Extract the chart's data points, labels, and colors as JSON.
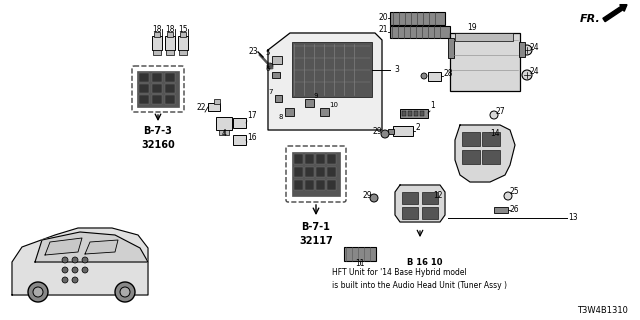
{
  "bg_color": "#ffffff",
  "diagram_code": "T3W4B1310",
  "fr_label": "FR.",
  "b73_label": "B-7-3\n32160",
  "b71_label": "B-7-1\n32117",
  "b1610_label": "B 16 10",
  "hft_note": "HFT Unit for '14 Base Hybrid model\nis built into the Audio Head Unit (Tuner Assy )",
  "font_color": "#000000",
  "dash_color": "#444444",
  "gray_dark": "#555555",
  "gray_med": "#888888",
  "gray_light": "#bbbbbb",
  "gray_fill": "#d8d8d8",
  "line_color": "#000000"
}
